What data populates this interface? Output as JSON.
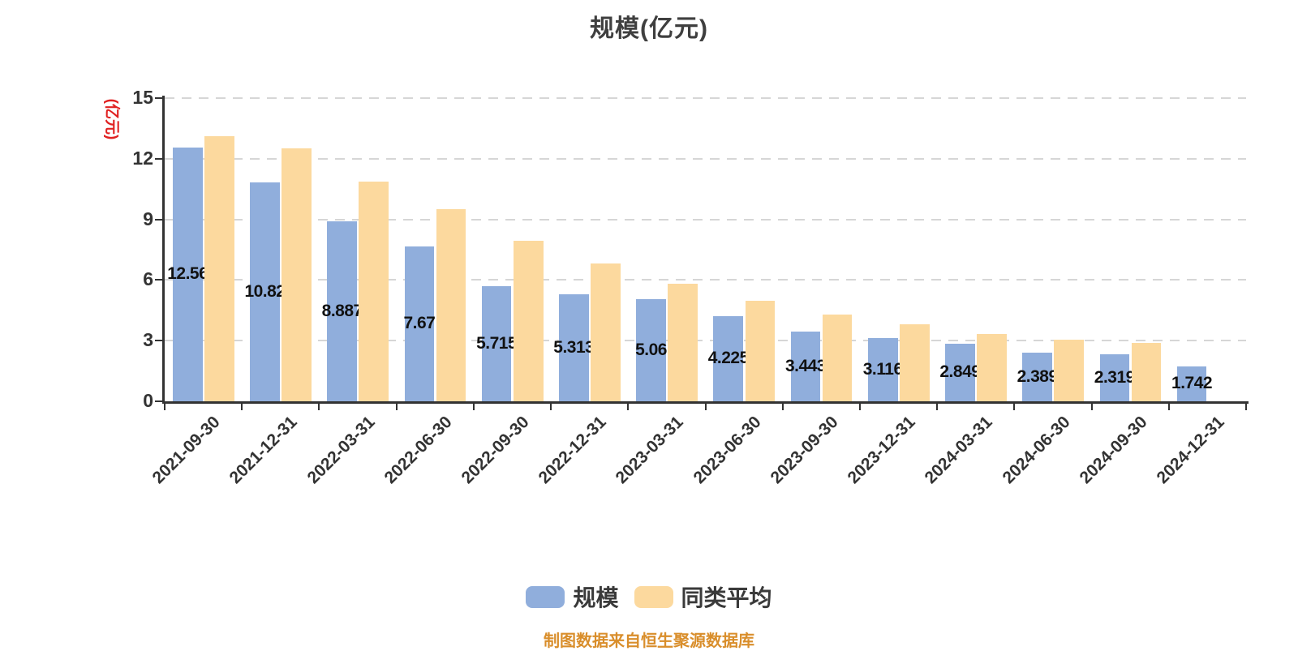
{
  "title": "规模(亿元)",
  "y_axis": {
    "name": "(亿元)",
    "name_color": "#E02121",
    "tick_values": [
      0,
      3,
      6,
      9,
      12,
      15
    ]
  },
  "legend": [
    {
      "label": "规模",
      "color": "#90AEDC"
    },
    {
      "label": "同类平均",
      "color": "#FCD99E"
    }
  ],
  "footer": {
    "text": "制图数据来自恒生聚源数据库",
    "color": "#D98E2B"
  },
  "chart_data": {
    "type": "bar",
    "title": "规模(亿元)",
    "ylabel": "(亿元)",
    "ylim": [
      0,
      15
    ],
    "y_tick_interval": 3,
    "grid": true,
    "gridline_style": "dashed",
    "legend_position": "bottom",
    "categories": [
      "2021-09-30",
      "2021-12-31",
      "2022-03-31",
      "2022-06-30",
      "2022-09-30",
      "2022-12-31",
      "2023-03-31",
      "2023-06-30",
      "2023-09-30",
      "2023-12-31",
      "2024-03-31",
      "2024-06-30",
      "2024-09-30",
      "2024-12-31"
    ],
    "series": [
      {
        "name": "规模",
        "color": "#90AEDC",
        "values": [
          12.56,
          10.82,
          8.887,
          7.67,
          5.715,
          5.313,
          5.06,
          4.225,
          3.443,
          3.116,
          2.849,
          2.389,
          2.319,
          1.742
        ],
        "labels_visible": true
      },
      {
        "name": "同类平均",
        "color": "#FCD99E",
        "values": [
          13.12,
          12.5,
          10.85,
          9.5,
          7.93,
          6.8,
          5.83,
          4.97,
          4.3,
          3.81,
          3.33,
          3.05,
          2.9,
          null
        ],
        "labels_visible": false
      }
    ]
  }
}
